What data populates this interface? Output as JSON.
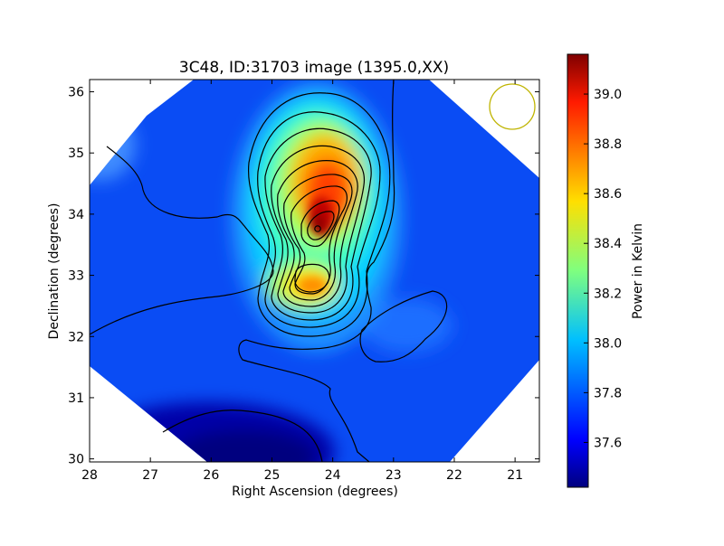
{
  "chart_data": {
    "type": "heatmap",
    "title": "3C48, ID:31703 image (1395.0,XX)",
    "xlabel": "Right Ascension (degrees)",
    "ylabel": "Declination (degrees)",
    "colorbar_label": "Power in Kelvin",
    "x_inverted": true,
    "xlim": [
      28,
      20.6
    ],
    "ylim": [
      29.95,
      36.2
    ],
    "x_ticks": [
      28,
      27,
      26,
      25,
      24,
      23,
      22,
      21
    ],
    "y_ticks": [
      30,
      31,
      32,
      33,
      34,
      35,
      36
    ],
    "colorbar_range": [
      37.42,
      39.16
    ],
    "colorbar_ticks": [
      "37.6",
      "37.8",
      "38.0",
      "38.2",
      "38.4",
      "38.6",
      "38.8",
      "39.0"
    ],
    "colormap": "jet",
    "contours": "black",
    "grid": false,
    "peaks": [
      {
        "ra": 24.3,
        "dec": 33.75,
        "value": 39.15
      },
      {
        "ra": 24.4,
        "dec": 32.8,
        "value": 38.72
      }
    ],
    "secondary_source": {
      "ra": 22.2,
      "dec": 32.2,
      "value": 37.85
    },
    "background_value": 37.6,
    "min_region": {
      "ra": 25.0,
      "dec": 30.0,
      "value": 37.43
    },
    "beam_marker": {
      "ra": 21.15,
      "dec": 35.75,
      "color": "#bfb400"
    }
  }
}
